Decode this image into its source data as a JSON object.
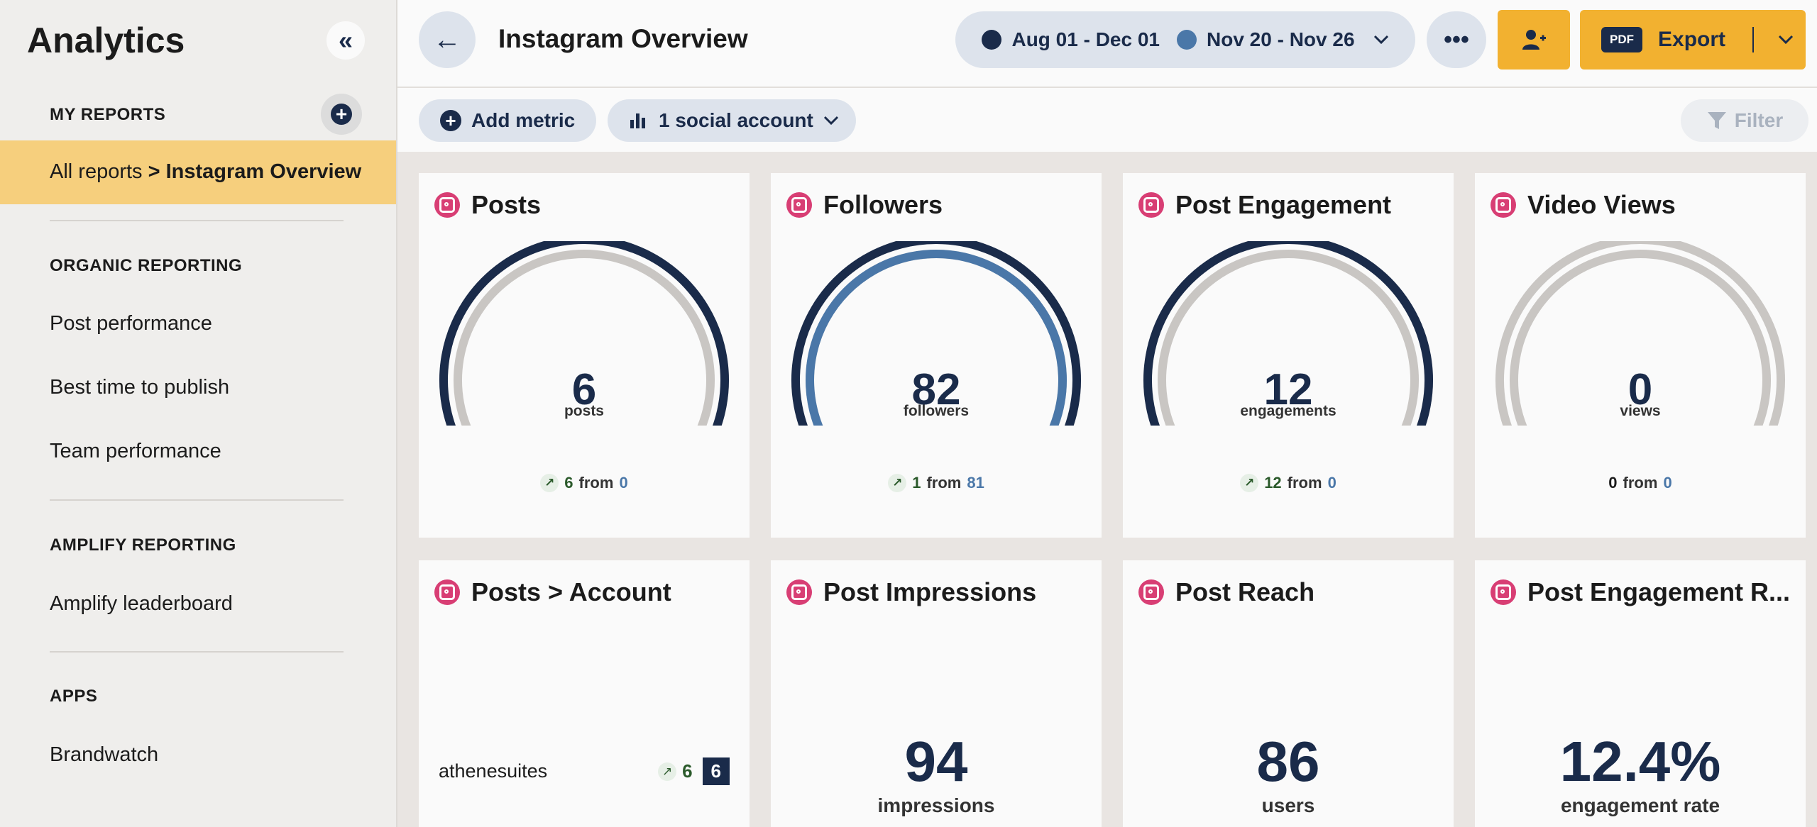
{
  "sidebar": {
    "title": "Analytics",
    "my_reports_label": "MY REPORTS",
    "active": {
      "prefix": "All reports",
      "current": "> Instagram Overview"
    },
    "organic_label": "ORGANIC REPORTING",
    "organic_items": [
      "Post performance",
      "Best time to publish",
      "Team performance"
    ],
    "amplify_label": "AMPLIFY REPORTING",
    "amplify_items": [
      "Amplify leaderboard"
    ],
    "apps_label": "APPS",
    "apps_items": [
      "Brandwatch"
    ]
  },
  "header": {
    "title": "Instagram Overview",
    "date_range_primary": "Aug 01 - Dec 01",
    "date_range_compare": "Nov 20 - Nov 26",
    "export_badge": "PDF",
    "export_label": "Export"
  },
  "toolbar": {
    "add_metric": "Add metric",
    "accounts": "1 social account",
    "filter": "Filter"
  },
  "colors": {
    "primary_navy": "#1a2b4a",
    "compare_blue": "#4a77a8",
    "accent_yellow": "#f2b130",
    "active_highlight": "#f6cf7d",
    "instagram_pink": "#d83e74",
    "delta_green": "#2b5a2b"
  },
  "cards_row1": [
    {
      "title": "Posts",
      "value": "6",
      "unit": "posts",
      "delta": "6",
      "from_label": "from",
      "previous": "0",
      "trend": "up",
      "outer_fraction": 1.0,
      "inner_fraction": 0.0
    },
    {
      "title": "Followers",
      "value": "82",
      "unit": "followers",
      "delta": "1",
      "from_label": "from",
      "previous": "81",
      "trend": "up",
      "outer_fraction": 1.0,
      "inner_fraction": 0.98
    },
    {
      "title": "Post Engagement",
      "value": "12",
      "unit": "engagements",
      "delta": "12",
      "from_label": "from",
      "previous": "0",
      "trend": "up",
      "outer_fraction": 1.0,
      "inner_fraction": 0.0
    },
    {
      "title": "Video Views",
      "value": "0",
      "unit": "views",
      "delta": "0",
      "from_label": "from",
      "previous": "0",
      "trend": "none",
      "outer_fraction": 0.0,
      "inner_fraction": 0.0
    }
  ],
  "cards_row2": {
    "posts_account": {
      "title": "Posts > Account",
      "account_name": "athenesuites",
      "delta": "6",
      "count": "6"
    },
    "impressions": {
      "title": "Post Impressions",
      "value": "94",
      "unit": "impressions"
    },
    "reach": {
      "title": "Post Reach",
      "value": "86",
      "unit": "users"
    },
    "engagement_rate": {
      "title": "Post Engagement R...",
      "value": "12.4%",
      "unit": "engagement rate"
    }
  }
}
